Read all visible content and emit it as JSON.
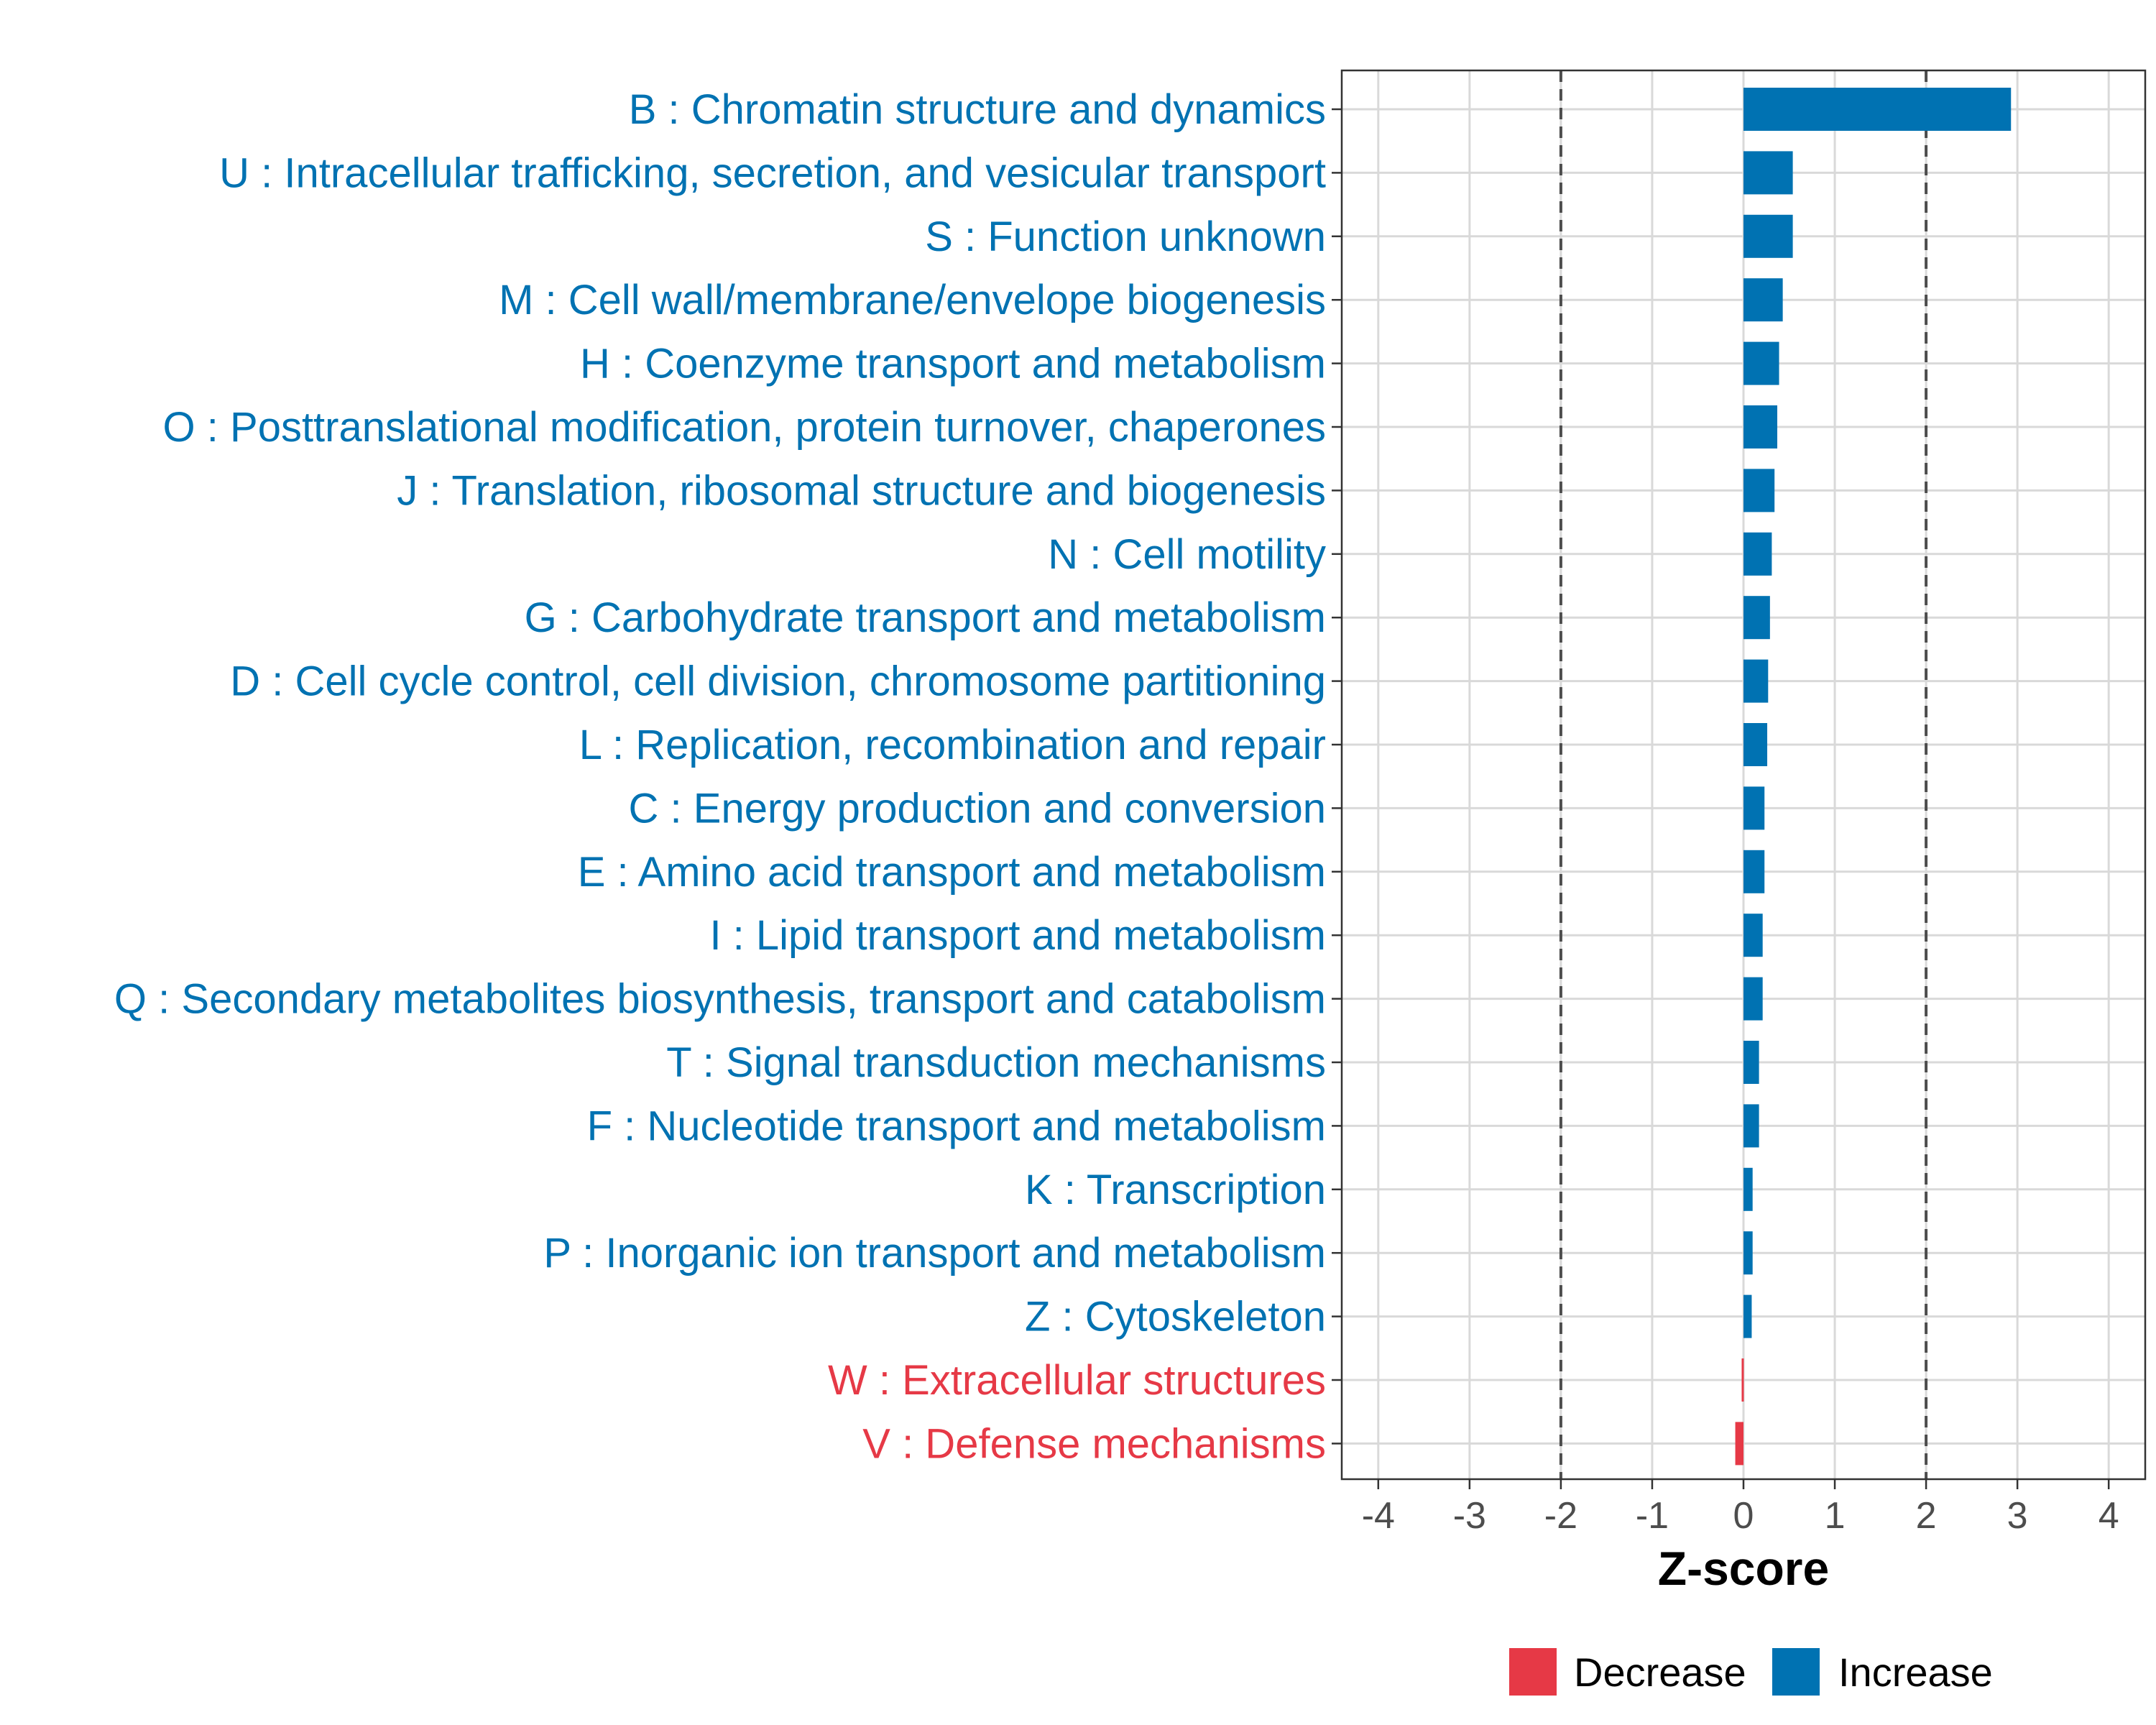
{
  "chart_data": {
    "type": "bar",
    "orientation": "horizontal",
    "xlabel": "Z-score",
    "ylabel": "",
    "xlim": [
      -4.4,
      4.4
    ],
    "xticks": [
      -4,
      -3,
      -2,
      -1,
      0,
      1,
      2,
      3,
      4
    ],
    "reference_lines": [
      -2,
      2
    ],
    "grid": true,
    "colors": {
      "Decrease": "#e63946",
      "Increase": "#0072b2"
    },
    "categories": [
      "B : Chromatin structure and dynamics",
      "U : Intracellular trafficking, secretion, and vesicular transport",
      "S : Function unknown",
      "M : Cell wall/membrane/envelope biogenesis",
      "H : Coenzyme transport and metabolism",
      "O : Posttranslational modification, protein turnover, chaperones",
      "J : Translation, ribosomal structure and biogenesis",
      "N : Cell motility",
      "G : Carbohydrate transport and metabolism",
      "D : Cell cycle control, cell division, chromosome partitioning",
      "L : Replication, recombination and repair",
      "C : Energy production and conversion",
      "E : Amino acid transport and metabolism",
      "I : Lipid transport and metabolism",
      "Q : Secondary metabolites biosynthesis, transport and catabolism",
      "T : Signal transduction mechanisms",
      "F : Nucleotide transport and metabolism",
      "K : Transcription",
      "P : Inorganic ion transport and metabolism",
      "Z : Cytoskeleton",
      "W : Extracellular structures",
      "V : Defense mechanisms"
    ],
    "values": [
      2.93,
      0.54,
      0.54,
      0.43,
      0.39,
      0.37,
      0.34,
      0.31,
      0.29,
      0.27,
      0.26,
      0.23,
      0.23,
      0.21,
      0.21,
      0.17,
      0.17,
      0.1,
      0.1,
      0.09,
      -0.02,
      -0.09
    ],
    "groups": [
      "Increase",
      "Increase",
      "Increase",
      "Increase",
      "Increase",
      "Increase",
      "Increase",
      "Increase",
      "Increase",
      "Increase",
      "Increase",
      "Increase",
      "Increase",
      "Increase",
      "Increase",
      "Increase",
      "Increase",
      "Increase",
      "Increase",
      "Increase",
      "Decrease",
      "Decrease"
    ],
    "legend": {
      "position": "bottom",
      "entries": [
        {
          "label": "Decrease"
        },
        {
          "label": "Increase"
        }
      ]
    }
  }
}
